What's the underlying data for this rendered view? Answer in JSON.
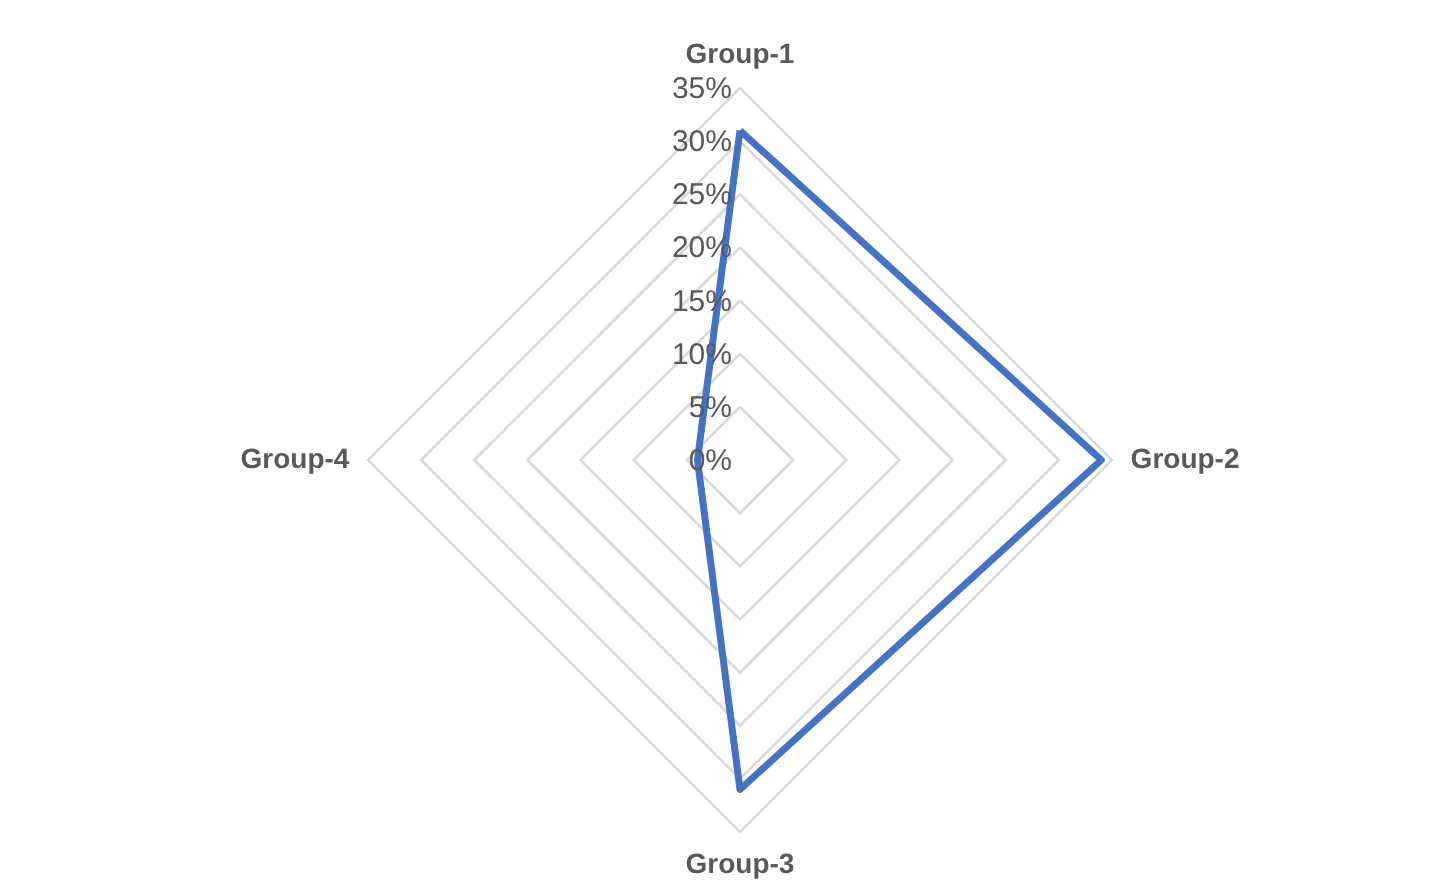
{
  "chart_data": {
    "type": "radar",
    "categories": [
      "Group-1",
      "Group-2",
      "Group-3",
      "Group-4"
    ],
    "series": [
      {
        "color": "#4472c4",
        "values": [
          31,
          34,
          31,
          4
        ]
      }
    ],
    "ylim": [
      0,
      35
    ],
    "yticks": [
      {
        "value": 0,
        "label": "0%"
      },
      {
        "value": 5,
        "label": "5%"
      },
      {
        "value": 10,
        "label": "10%"
      },
      {
        "value": 15,
        "label": "15%"
      },
      {
        "value": 20,
        "label": "20%"
      },
      {
        "value": 25,
        "label": "25%"
      },
      {
        "value": 30,
        "label": "30%"
      },
      {
        "value": 35,
        "label": "35%"
      }
    ],
    "grid": true,
    "marker": "none",
    "line_style": "solid"
  }
}
